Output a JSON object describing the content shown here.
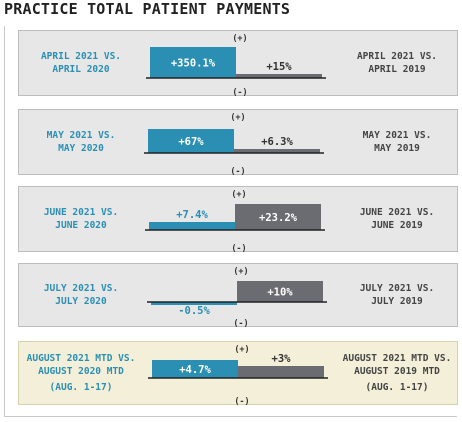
{
  "title": "PRACTICE TOTAL PATIENT PAYMENTS",
  "colors": {
    "left_bar": "#2a8fb3",
    "right_bar": "#6b6b72",
    "axis": "#222222",
    "left_text": "#2a8fb3",
    "right_text": "#444444"
  },
  "chart_data": {
    "type": "bar",
    "title": "PRACTICE TOTAL PATIENT PAYMENTS",
    "positive_marker": "(+)",
    "negative_marker": "(-)",
    "comparisons": [
      {
        "left_label": [
          "APRIL 2021 VS.",
          "APRIL 2020"
        ],
        "left_value": 350.1,
        "left_text": "+350.1%",
        "right_label": [
          "APRIL 2021 VS.",
          "APRIL 2019"
        ],
        "right_value": 15,
        "right_text": "+15%",
        "highlight": false
      },
      {
        "left_label": [
          "MAY 2021 VS.",
          "MAY 2020"
        ],
        "left_value": 67,
        "left_text": "+67%",
        "right_label": [
          "MAY 2021 VS.",
          "MAY 2019"
        ],
        "right_value": 6.3,
        "right_text": "+6.3%",
        "highlight": false
      },
      {
        "left_label": [
          "JUNE 2021 VS.",
          "JUNE 2020"
        ],
        "left_value": 7.4,
        "left_text": "+7.4%",
        "right_label": [
          "JUNE 2021 VS.",
          "JUNE 2019"
        ],
        "right_value": 23.2,
        "right_text": "+23.2%",
        "highlight": false
      },
      {
        "left_label": [
          "JULY 2021 VS.",
          "JULY 2020"
        ],
        "left_value": -0.5,
        "left_text": "-0.5%",
        "right_label": [
          "JULY 2021 VS.",
          "JULY 2019"
        ],
        "right_value": 10,
        "right_text": "+10%",
        "highlight": false
      },
      {
        "left_label": [
          "AUGUST 2021 MTD VS.",
          "AUGUST 2020 MTD",
          "(AUG. 1-17)"
        ],
        "left_value": 4.7,
        "left_text": "+4.7%",
        "right_label": [
          "AUGUST 2021 MTD VS.",
          "AUGUST 2019 MTD",
          "(AUG. 1-17)"
        ],
        "right_value": 3,
        "right_text": "+3%",
        "highlight": true
      }
    ]
  }
}
